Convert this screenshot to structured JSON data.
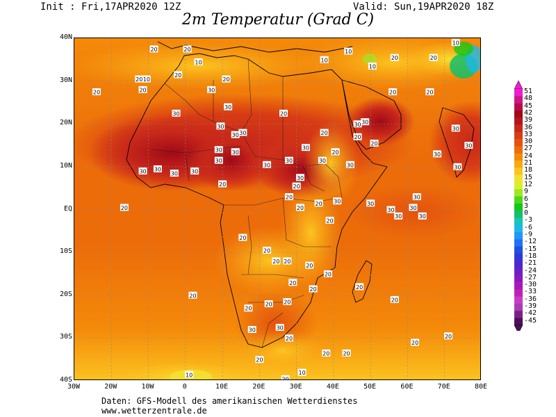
{
  "header": {
    "init": "Init : Fri,17APR2020 12Z",
    "valid": "Valid: Sun,19APR2020 18Z",
    "title": "2m Temperatur (Grad C)"
  },
  "axes": {
    "lat_labels": [
      "40N",
      "30N",
      "20N",
      "10N",
      "EQ",
      "10S",
      "20S",
      "30S",
      "40S"
    ],
    "lon_labels": [
      "30W",
      "20W",
      "10W",
      "0",
      "10E",
      "20E",
      "30E",
      "40E",
      "50E",
      "60E",
      "70E",
      "80E"
    ]
  },
  "colorbar": {
    "labels": [
      "51",
      "48",
      "45",
      "42",
      "39",
      "36",
      "33",
      "30",
      "27",
      "24",
      "21",
      "18",
      "15",
      "12",
      "9",
      "6",
      "3",
      "0",
      "-3",
      "-6",
      "-9",
      "-12",
      "-15",
      "-18",
      "-21",
      "-24",
      "-27",
      "-30",
      "-33",
      "-36",
      "-39",
      "-42",
      "-45"
    ],
    "colors": [
      "#f01cd0",
      "#d0148a",
      "#b80c4a",
      "#a00a18",
      "#b8141e",
      "#c8281a",
      "#d83c14",
      "#e4520e",
      "#ec6c0a",
      "#f48a0a",
      "#f8a812",
      "#fcc420",
      "#f4e030",
      "#d8f028",
      "#9ce824",
      "#4cd81c",
      "#14c814",
      "#10c06c",
      "#18c4b4",
      "#1cb8e8",
      "#2098f8",
      "#2070f8",
      "#2050e0",
      "#3038d8",
      "#4c28d0",
      "#6c20c8",
      "#8c18c0",
      "#a818b8",
      "#c020b8",
      "#c83cc4",
      "#a83cb0",
      "#7a2088",
      "#4c1058"
    ]
  },
  "contour_labels": [
    {
      "text": "20",
      "lon": -8.5,
      "lat": 37.5
    },
    {
      "text": "20",
      "lon": 0.5,
      "lat": 37.5
    },
    {
      "text": "10",
      "lon": 3.5,
      "lat": 34.5
    },
    {
      "text": "20",
      "lon": -2,
      "lat": 31.5
    },
    {
      "text": "20",
      "lon": -12.5,
      "lat": 30.5
    },
    {
      "text": "10",
      "lon": -10.5,
      "lat": 30.5
    },
    {
      "text": "20",
      "lon": -24,
      "lat": 27.5
    },
    {
      "text": "20",
      "lon": -11.5,
      "lat": 28
    },
    {
      "text": "30",
      "lon": 7,
      "lat": 28
    },
    {
      "text": "20",
      "lon": 11,
      "lat": 30.5
    },
    {
      "text": "30",
      "lon": -2.5,
      "lat": 22.5
    },
    {
      "text": "30",
      "lon": 11.5,
      "lat": 24
    },
    {
      "text": "20",
      "lon": 26.5,
      "lat": 22.5
    },
    {
      "text": "30",
      "lon": 9.5,
      "lat": 19.5
    },
    {
      "text": "30",
      "lon": 13.5,
      "lat": 17.5
    },
    {
      "text": "30",
      "lon": 15.5,
      "lat": 18
    },
    {
      "text": "30",
      "lon": 9,
      "lat": 14
    },
    {
      "text": "30",
      "lon": 9,
      "lat": 11.5
    },
    {
      "text": "30",
      "lon": 13.5,
      "lat": 13.5
    },
    {
      "text": "30",
      "lon": 28,
      "lat": 11.5
    },
    {
      "text": "30",
      "lon": 32.5,
      "lat": 14.5
    },
    {
      "text": "30",
      "lon": -11.5,
      "lat": 9
    },
    {
      "text": "30",
      "lon": -7.5,
      "lat": 9.5
    },
    {
      "text": "30",
      "lon": -3,
      "lat": 8.5
    },
    {
      "text": "30",
      "lon": 2.5,
      "lat": 9
    },
    {
      "text": "30",
      "lon": 22,
      "lat": 10.5
    },
    {
      "text": "20",
      "lon": 30,
      "lat": 5.5
    },
    {
      "text": "20",
      "lon": 10,
      "lat": 6
    },
    {
      "text": "20",
      "lon": 28,
      "lat": 3
    },
    {
      "text": "20",
      "lon": 36,
      "lat": 1.5
    },
    {
      "text": "20",
      "lon": 31,
      "lat": 0.5
    },
    {
      "text": "20",
      "lon": 39,
      "lat": -2.5
    },
    {
      "text": "30",
      "lon": 31,
      "lat": 7.5
    },
    {
      "text": "30",
      "lon": 37,
      "lat": 11.5
    },
    {
      "text": "30",
      "lon": 44.5,
      "lat": 10.5
    },
    {
      "text": "30",
      "lon": 41,
      "lat": 2
    },
    {
      "text": "30",
      "lon": 50,
      "lat": 1.5
    },
    {
      "text": "30",
      "lon": 55.5,
      "lat": 0
    },
    {
      "text": "30",
      "lon": 61.5,
      "lat": 0.5
    },
    {
      "text": "30",
      "lon": 64,
      "lat": -1.5
    },
    {
      "text": "30",
      "lon": 62.5,
      "lat": 3
    },
    {
      "text": "30",
      "lon": 57.5,
      "lat": -1.5
    },
    {
      "text": "30",
      "lon": 46.5,
      "lat": 20
    },
    {
      "text": "30",
      "lon": 48.5,
      "lat": 20.5
    },
    {
      "text": "20",
      "lon": 37.5,
      "lat": 18
    },
    {
      "text": "20",
      "lon": 40.5,
      "lat": 13.5
    },
    {
      "text": "20",
      "lon": 46.5,
      "lat": 17
    },
    {
      "text": "20",
      "lon": 51,
      "lat": 15.5
    },
    {
      "text": "10",
      "lon": 37.5,
      "lat": 35
    },
    {
      "text": "10",
      "lon": 44,
      "lat": 37
    },
    {
      "text": "10",
      "lon": 50.5,
      "lat": 33.5
    },
    {
      "text": "20",
      "lon": 56.5,
      "lat": 35.5
    },
    {
      "text": "20",
      "lon": 67,
      "lat": 35.5
    },
    {
      "text": "10",
      "lon": 73,
      "lat": 39
    },
    {
      "text": "20",
      "lon": 66,
      "lat": 27.5
    },
    {
      "text": "20",
      "lon": 56,
      "lat": 27.5
    },
    {
      "text": "30",
      "lon": 73,
      "lat": 19
    },
    {
      "text": "30",
      "lon": 76.5,
      "lat": 15
    },
    {
      "text": "30",
      "lon": 68,
      "lat": 13
    },
    {
      "text": "30",
      "lon": 73.5,
      "lat": 10
    },
    {
      "text": "20",
      "lon": -16.5,
      "lat": 0.5
    },
    {
      "text": "20",
      "lon": 2,
      "lat": -20
    },
    {
      "text": "20",
      "lon": 15.5,
      "lat": -6.5
    },
    {
      "text": "20",
      "lon": 22,
      "lat": -9.5
    },
    {
      "text": "20",
      "lon": 24.5,
      "lat": -12
    },
    {
      "text": "20",
      "lon": 27.5,
      "lat": -12
    },
    {
      "text": "20",
      "lon": 33.5,
      "lat": -13
    },
    {
      "text": "20",
      "lon": 38.5,
      "lat": -15
    },
    {
      "text": "20",
      "lon": 29,
      "lat": -17
    },
    {
      "text": "20",
      "lon": 34.5,
      "lat": -18.5
    },
    {
      "text": "20",
      "lon": 22.5,
      "lat": -22
    },
    {
      "text": "20",
      "lon": 27.5,
      "lat": -21.5
    },
    {
      "text": "20",
      "lon": 17,
      "lat": -23
    },
    {
      "text": "20",
      "lon": 47,
      "lat": -18
    },
    {
      "text": "20",
      "lon": 56.5,
      "lat": -21
    },
    {
      "text": "30",
      "lon": 18,
      "lat": -28
    },
    {
      "text": "30",
      "lon": 25.5,
      "lat": -27.5
    },
    {
      "text": "20",
      "lon": 28,
      "lat": -30
    },
    {
      "text": "20",
      "lon": 20,
      "lat": -35
    },
    {
      "text": "20",
      "lon": 43.5,
      "lat": -33.5
    },
    {
      "text": "20",
      "lon": 62,
      "lat": -31
    },
    {
      "text": "20",
      "lon": 71,
      "lat": -29.5
    },
    {
      "text": "20",
      "lon": 38,
      "lat": -33.5
    },
    {
      "text": "20",
      "lon": 27,
      "lat": -39.5
    },
    {
      "text": "10",
      "lon": 31.5,
      "lat": -38
    },
    {
      "text": "10",
      "lon": 1,
      "lat": -38.5
    }
  ],
  "footer": {
    "line1": "Daten: GFS-Modell des amerikanischen Wetterdienstes",
    "line2": "www.wetterzentrale.de"
  }
}
